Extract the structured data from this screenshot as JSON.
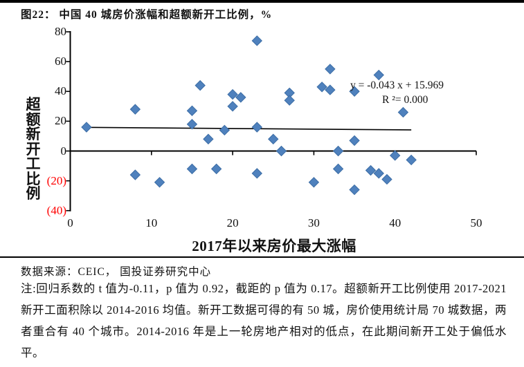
{
  "figure": {
    "title": "图22：  中国 40 城房价涨幅和超额新开工比例，%",
    "source_line": "数据来源：CEIC， 国投证券研究中心",
    "note": "注:回归系数的 t 值为-0.11，p 值为 0.92，截距的 p 值为 0.17。超额新开工比例使用 2017-2021 新开工面积除以 2014-2016 均值。新开工数据可得的有 50 城，房价使用统计局 70 城数据，两者重合有 40 个城市。2014-2016 年是上一轮房地产相对的低点，在此期间新开工处于偏低水平。"
  },
  "chart_data": {
    "type": "scatter",
    "title": "中国 40 城房价涨幅和超额新开工比例，%",
    "xlabel": "2017年以来房价最大涨幅",
    "ylabel": "超额新开工比例",
    "xlim": [
      0,
      50
    ],
    "ylim": [
      -40,
      80
    ],
    "x_ticks": [
      0,
      10,
      20,
      30,
      40,
      50
    ],
    "y_ticks": [
      80,
      60,
      40,
      20,
      0,
      -20,
      -40
    ],
    "y_tick_labels": [
      "80",
      "60",
      "40",
      "20",
      "0",
      "(20)",
      "(40)"
    ],
    "grid": "off",
    "points": [
      [
        2,
        16
      ],
      [
        8,
        28
      ],
      [
        8,
        -16
      ],
      [
        11,
        -21
      ],
      [
        15,
        27
      ],
      [
        15,
        18
      ],
      [
        15,
        -12
      ],
      [
        16,
        44
      ],
      [
        17,
        8
      ],
      [
        18,
        -12
      ],
      [
        19,
        14
      ],
      [
        20,
        30
      ],
      [
        20,
        38
      ],
      [
        21,
        36
      ],
      [
        23,
        74
      ],
      [
        23,
        16
      ],
      [
        23,
        -15
      ],
      [
        25,
        8
      ],
      [
        26,
        0
      ],
      [
        27,
        39
      ],
      [
        27,
        34
      ],
      [
        30,
        -21
      ],
      [
        31,
        43
      ],
      [
        32,
        41
      ],
      [
        32,
        55
      ],
      [
        33,
        0
      ],
      [
        33,
        -12
      ],
      [
        35,
        40
      ],
      [
        35,
        7
      ],
      [
        35,
        -26
      ],
      [
        37,
        -13
      ],
      [
        38,
        -15
      ],
      [
        38,
        51
      ],
      [
        39,
        -19
      ],
      [
        40,
        -3
      ],
      [
        41,
        26
      ],
      [
        42,
        -6
      ]
    ],
    "trendline": {
      "slope": -0.043,
      "intercept": 15.969,
      "x_start": 2,
      "x_end": 42,
      "equation_line1": "y = -0.043  x + 15.969",
      "equation_line2": "R ²= 0.000"
    },
    "marker": {
      "shape": "diamond",
      "color": "#4F81BD",
      "stroke": "#3C6DA5"
    },
    "axis_color": "#000000",
    "negative_label_color": "#FF0000"
  }
}
